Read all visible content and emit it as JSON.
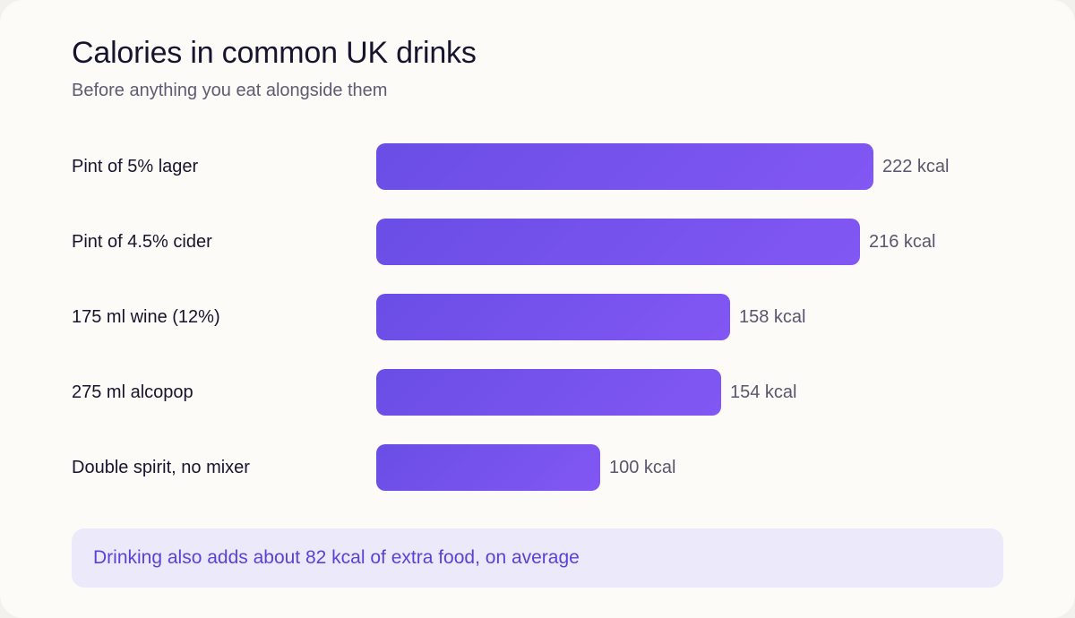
{
  "chart_data": {
    "type": "bar",
    "orientation": "horizontal",
    "title": "Calories in common UK drinks",
    "subtitle": "Before anything you eat alongside them",
    "categories": [
      "Pint of 5% lager",
      "Pint of 4.5% cider",
      "175 ml wine (12%)",
      "275 ml alcopop",
      "Double spirit, no mixer"
    ],
    "values": [
      222,
      216,
      158,
      154,
      100
    ],
    "value_labels": [
      "222 kcal",
      "216 kcal",
      "158 kcal",
      "154 kcal",
      "100 kcal"
    ],
    "unit": "kcal",
    "xlim": [
      0,
      222
    ],
    "grid": false,
    "legend": "none",
    "bar_color": "#6f51ea",
    "annotation": "Drinking also adds about 82 kcal of extra food, on average"
  }
}
